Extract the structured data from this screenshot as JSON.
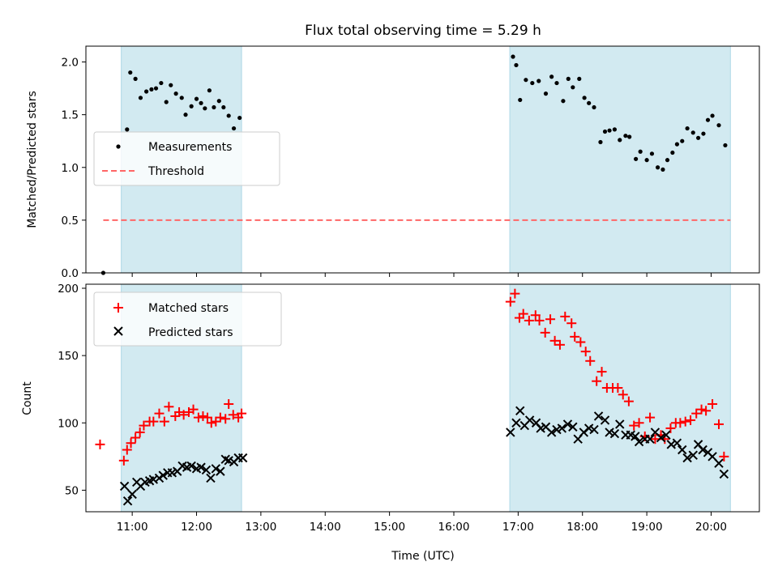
{
  "title": "Flux total observing time = 5.29 h",
  "colors": {
    "shade": "#add8e6",
    "threshold": "#ff6666",
    "measurement": "#000000",
    "matched": "#ff0000",
    "predicted": "#000000"
  },
  "chart_data": [
    {
      "type": "scatter",
      "ylabel": "Matched/Predicted stars",
      "xlim": [
        10.28,
        20.75
      ],
      "ylim": [
        0,
        2.15
      ],
      "yticks": [
        0.0,
        0.5,
        1.0,
        1.5,
        2.0
      ],
      "ytick_labels": [
        "0.0",
        "0.5",
        "1.0",
        "1.5",
        "2.0"
      ],
      "legend": {
        "position": "center-left",
        "entries": [
          "Measurements",
          "Threshold"
        ]
      },
      "shaded_intervals": [
        [
          10.83,
          12.7
        ],
        [
          16.87,
          20.3
        ]
      ],
      "threshold": {
        "name": "Threshold",
        "y": 0.5,
        "x_range": [
          10.55,
          20.3
        ],
        "style": "dashed"
      },
      "series": [
        {
          "name": "Measurements",
          "marker": "dot",
          "points": [
            [
              10.55,
              0.0
            ],
            [
              10.92,
              1.36
            ],
            [
              10.97,
              1.9
            ],
            [
              11.05,
              1.84
            ],
            [
              11.13,
              1.66
            ],
            [
              11.22,
              1.72
            ],
            [
              11.3,
              1.74
            ],
            [
              11.37,
              1.75
            ],
            [
              11.45,
              1.8
            ],
            [
              11.53,
              1.62
            ],
            [
              11.6,
              1.78
            ],
            [
              11.68,
              1.7
            ],
            [
              11.77,
              1.66
            ],
            [
              11.83,
              1.5
            ],
            [
              11.92,
              1.58
            ],
            [
              12.0,
              1.65
            ],
            [
              12.07,
              1.61
            ],
            [
              12.13,
              1.56
            ],
            [
              12.2,
              1.73
            ],
            [
              12.27,
              1.57
            ],
            [
              12.35,
              1.63
            ],
            [
              12.42,
              1.57
            ],
            [
              12.5,
              1.49
            ],
            [
              12.58,
              1.37
            ],
            [
              12.67,
              1.47
            ],
            [
              16.92,
              2.05
            ],
            [
              16.97,
              1.97
            ],
            [
              17.03,
              1.64
            ],
            [
              17.12,
              1.83
            ],
            [
              17.22,
              1.8
            ],
            [
              17.32,
              1.82
            ],
            [
              17.43,
              1.7
            ],
            [
              17.52,
              1.86
            ],
            [
              17.6,
              1.8
            ],
            [
              17.7,
              1.63
            ],
            [
              17.78,
              1.84
            ],
            [
              17.85,
              1.76
            ],
            [
              17.95,
              1.84
            ],
            [
              18.03,
              1.66
            ],
            [
              18.1,
              1.61
            ],
            [
              18.18,
              1.57
            ],
            [
              18.28,
              1.24
            ],
            [
              18.35,
              1.34
            ],
            [
              18.42,
              1.35
            ],
            [
              18.5,
              1.36
            ],
            [
              18.58,
              1.26
            ],
            [
              18.67,
              1.3
            ],
            [
              18.73,
              1.29
            ],
            [
              18.83,
              1.08
            ],
            [
              18.9,
              1.15
            ],
            [
              19.0,
              1.07
            ],
            [
              19.08,
              1.13
            ],
            [
              19.17,
              1.0
            ],
            [
              19.25,
              0.98
            ],
            [
              19.32,
              1.07
            ],
            [
              19.4,
              1.14
            ],
            [
              19.47,
              1.22
            ],
            [
              19.55,
              1.25
            ],
            [
              19.63,
              1.37
            ],
            [
              19.72,
              1.33
            ],
            [
              19.8,
              1.28
            ],
            [
              19.88,
              1.32
            ],
            [
              19.95,
              1.45
            ],
            [
              20.02,
              1.49
            ],
            [
              20.12,
              1.4
            ],
            [
              20.22,
              1.21
            ]
          ]
        }
      ]
    },
    {
      "type": "scatter",
      "xlabel": "Time (UTC)",
      "ylabel": "Count",
      "xlim": [
        10.28,
        20.75
      ],
      "ylim": [
        34,
        203
      ],
      "xticks": [
        11,
        12,
        13,
        14,
        15,
        16,
        17,
        18,
        19,
        20
      ],
      "xtick_labels": [
        "11:00",
        "12:00",
        "13:00",
        "14:00",
        "15:00",
        "16:00",
        "17:00",
        "18:00",
        "19:00",
        "20:00"
      ],
      "yticks": [
        50,
        100,
        150,
        200
      ],
      "ytick_labels": [
        "50",
        "100",
        "150",
        "200"
      ],
      "legend": {
        "position": "upper-left",
        "entries": [
          "Matched stars",
          "Predicted stars"
        ]
      },
      "shaded_intervals": [
        [
          10.83,
          12.7
        ],
        [
          16.87,
          20.3
        ]
      ],
      "series": [
        {
          "name": "Matched stars",
          "marker": "plus",
          "points": [
            [
              10.5,
              84
            ],
            [
              10.87,
              72
            ],
            [
              10.92,
              80
            ],
            [
              10.98,
              85
            ],
            [
              11.05,
              89
            ],
            [
              11.12,
              93
            ],
            [
              11.18,
              98
            ],
            [
              11.27,
              101
            ],
            [
              11.33,
              101
            ],
            [
              11.42,
              107
            ],
            [
              11.5,
              101
            ],
            [
              11.57,
              112
            ],
            [
              11.67,
              105
            ],
            [
              11.73,
              108
            ],
            [
              11.8,
              106
            ],
            [
              11.88,
              108
            ],
            [
              11.95,
              110
            ],
            [
              12.03,
              104
            ],
            [
              12.1,
              105
            ],
            [
              12.17,
              104
            ],
            [
              12.23,
              100
            ],
            [
              12.3,
              101
            ],
            [
              12.37,
              104
            ],
            [
              12.45,
              103
            ],
            [
              12.5,
              114
            ],
            [
              12.57,
              106
            ],
            [
              12.65,
              104
            ],
            [
              12.7,
              107
            ],
            [
              16.88,
              190
            ],
            [
              16.95,
              196
            ],
            [
              17.02,
              178
            ],
            [
              17.08,
              181
            ],
            [
              17.17,
              176
            ],
            [
              17.27,
              180
            ],
            [
              17.33,
              176
            ],
            [
              17.42,
              167
            ],
            [
              17.5,
              177
            ],
            [
              17.57,
              161
            ],
            [
              17.65,
              158
            ],
            [
              17.73,
              179
            ],
            [
              17.83,
              174
            ],
            [
              17.88,
              164
            ],
            [
              17.97,
              160
            ],
            [
              18.05,
              153
            ],
            [
              18.12,
              146
            ],
            [
              18.22,
              131
            ],
            [
              18.3,
              138
            ],
            [
              18.38,
              126
            ],
            [
              18.47,
              126
            ],
            [
              18.55,
              126
            ],
            [
              18.63,
              121
            ],
            [
              18.72,
              116
            ],
            [
              18.8,
              98
            ],
            [
              18.88,
              100
            ],
            [
              18.97,
              90
            ],
            [
              19.05,
              104
            ],
            [
              19.13,
              88
            ],
            [
              19.22,
              91
            ],
            [
              19.28,
              88
            ],
            [
              19.37,
              96
            ],
            [
              19.45,
              100
            ],
            [
              19.52,
              100
            ],
            [
              19.6,
              101
            ],
            [
              19.68,
              102
            ],
            [
              19.77,
              107
            ],
            [
              19.85,
              110
            ],
            [
              19.92,
              109
            ],
            [
              20.02,
              114
            ],
            [
              20.12,
              99
            ],
            [
              20.2,
              75
            ]
          ]
        },
        {
          "name": "Predicted stars",
          "marker": "x",
          "points": [
            [
              10.88,
              53
            ],
            [
              10.93,
              42
            ],
            [
              11.0,
              47
            ],
            [
              11.07,
              56
            ],
            [
              11.13,
              53
            ],
            [
              11.2,
              56
            ],
            [
              11.27,
              57
            ],
            [
              11.33,
              58
            ],
            [
              11.42,
              59
            ],
            [
              11.48,
              61
            ],
            [
              11.55,
              63
            ],
            [
              11.62,
              63
            ],
            [
              11.7,
              64
            ],
            [
              11.78,
              68
            ],
            [
              11.85,
              67
            ],
            [
              11.92,
              68
            ],
            [
              12.0,
              66
            ],
            [
              12.07,
              67
            ],
            [
              12.15,
              65
            ],
            [
              12.22,
              59
            ],
            [
              12.3,
              66
            ],
            [
              12.37,
              64
            ],
            [
              12.45,
              73
            ],
            [
              12.5,
              72
            ],
            [
              12.58,
              71
            ],
            [
              12.65,
              74
            ],
            [
              12.72,
              74
            ],
            [
              16.88,
              93
            ],
            [
              16.97,
              100
            ],
            [
              17.03,
              109
            ],
            [
              17.1,
              98
            ],
            [
              17.18,
              102
            ],
            [
              17.28,
              100
            ],
            [
              17.35,
              96
            ],
            [
              17.43,
              97
            ],
            [
              17.52,
              93
            ],
            [
              17.6,
              95
            ],
            [
              17.68,
              96
            ],
            [
              17.77,
              99
            ],
            [
              17.85,
              97
            ],
            [
              17.93,
              88
            ],
            [
              18.02,
              93
            ],
            [
              18.1,
              96
            ],
            [
              18.18,
              95
            ],
            [
              18.25,
              105
            ],
            [
              18.35,
              102
            ],
            [
              18.42,
              93
            ],
            [
              18.5,
              92
            ],
            [
              18.58,
              99
            ],
            [
              18.67,
              91
            ],
            [
              18.75,
              91
            ],
            [
              18.82,
              90
            ],
            [
              18.88,
              86
            ],
            [
              18.97,
              88
            ],
            [
              19.05,
              88
            ],
            [
              19.13,
              93
            ],
            [
              19.22,
              89
            ],
            [
              19.3,
              91
            ],
            [
              19.38,
              84
            ],
            [
              19.47,
              85
            ],
            [
              19.55,
              80
            ],
            [
              19.63,
              74
            ],
            [
              19.72,
              76
            ],
            [
              19.8,
              84
            ],
            [
              19.87,
              80
            ],
            [
              19.95,
              78
            ],
            [
              20.02,
              75
            ],
            [
              20.12,
              70
            ],
            [
              20.2,
              62
            ]
          ]
        }
      ]
    }
  ]
}
